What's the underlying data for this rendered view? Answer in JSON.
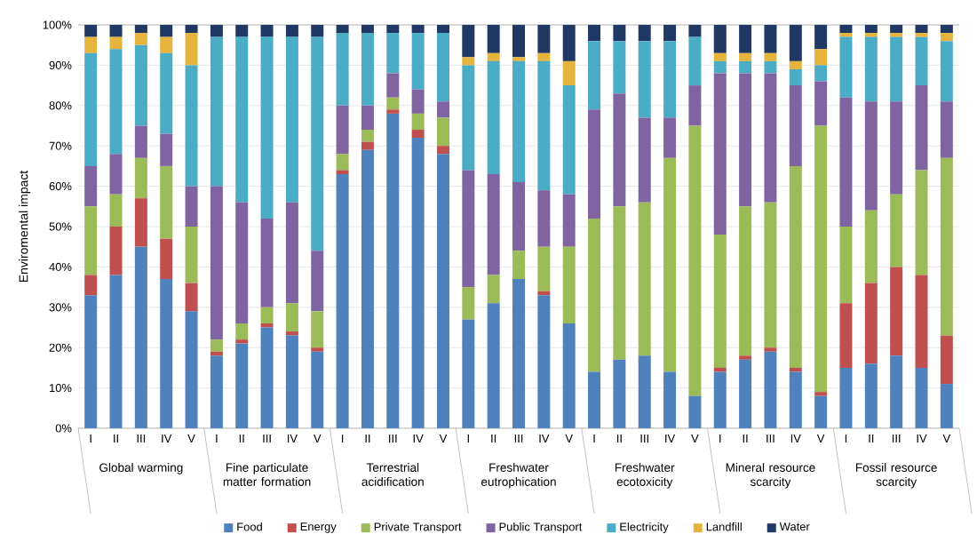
{
  "chart_data": {
    "type": "bar",
    "stacked": true,
    "ylabel": "Enviromental impact",
    "categories": [
      "I",
      "II",
      "III",
      "IV",
      "V",
      "I",
      "II",
      "III",
      "IV",
      "V",
      "I",
      "II",
      "III",
      "IV",
      "V",
      "I",
      "II",
      "III",
      "IV",
      "V",
      "I",
      "II",
      "III",
      "IV",
      "V",
      "I",
      "II",
      "III",
      "IV",
      "V",
      "I",
      "II",
      "III",
      "IV",
      "V"
    ],
    "annotations": [
      "Global warming",
      "Fine particulate matter formation",
      "Terrestrial acidification",
      "Freshwater eutrophication",
      "Freshwater ecotoxicity",
      "Mineral resource scarcity",
      "Fossil resource scarcity"
    ],
    "series": [
      {
        "name": "Food",
        "color": "#4f81bd",
        "values": [
          33,
          38,
          45,
          37,
          29,
          18,
          21,
          25,
          23,
          19,
          63,
          69,
          78,
          72,
          68,
          27,
          31,
          37,
          33,
          26,
          14,
          17,
          18,
          14,
          8,
          14,
          17,
          19,
          14,
          8,
          15,
          16,
          18,
          15,
          11
        ]
      },
      {
        "name": "Energy",
        "color": "#c0504d",
        "values": [
          5,
          12,
          12,
          10,
          7,
          1,
          1,
          1,
          1,
          1,
          1,
          2,
          1,
          2,
          2,
          0,
          0,
          0,
          1,
          0,
          0,
          0,
          0,
          0,
          0,
          1,
          1,
          1,
          1,
          1,
          16,
          20,
          22,
          23,
          12
        ]
      },
      {
        "name": "Private Transport",
        "color": "#9bbb59",
        "values": [
          17,
          8,
          10,
          18,
          14,
          3,
          4,
          4,
          7,
          9,
          4,
          3,
          3,
          4,
          7,
          8,
          7,
          7,
          11,
          19,
          38,
          38,
          38,
          53,
          67,
          33,
          37,
          36,
          50,
          66,
          19,
          18,
          18,
          26,
          44
        ]
      },
      {
        "name": "Public Transport",
        "color": "#8064a2",
        "values": [
          10,
          10,
          8,
          8,
          10,
          38,
          30,
          22,
          25,
          15,
          12,
          6,
          6,
          6,
          4,
          29,
          25,
          17,
          14,
          13,
          27,
          28,
          21,
          10,
          10,
          40,
          33,
          32,
          20,
          11,
          32,
          27,
          23,
          21,
          14
        ]
      },
      {
        "name": "Electricity",
        "color": "#4bacc6",
        "values": [
          28,
          26,
          20,
          20,
          30,
          37,
          41,
          45,
          41,
          53,
          18,
          18,
          10,
          14,
          17,
          26,
          28,
          30,
          32,
          27,
          17,
          13,
          19,
          19,
          12,
          3,
          3,
          3,
          4,
          4,
          15,
          16,
          16,
          12,
          15
        ]
      },
      {
        "name": "Landfill",
        "color": "#e6b43c",
        "values": [
          4,
          3,
          3,
          4,
          8,
          0,
          0,
          0,
          0,
          0,
          0,
          0,
          0,
          0,
          0,
          2,
          2,
          1,
          2,
          6,
          0,
          0,
          0,
          0,
          0,
          2,
          2,
          2,
          2,
          4,
          1,
          1,
          1,
          1,
          2
        ]
      },
      {
        "name": "Water",
        "color": "#1f3864",
        "values": [
          3,
          3,
          2,
          3,
          2,
          3,
          3,
          3,
          3,
          3,
          2,
          2,
          2,
          2,
          2,
          8,
          7,
          8,
          7,
          9,
          4,
          4,
          4,
          4,
          3,
          7,
          7,
          7,
          9,
          6,
          2,
          2,
          2,
          2,
          2
        ]
      }
    ],
    "ylim": [
      0,
      100
    ],
    "yticks": [
      {
        "value": 0,
        "label": "0%"
      },
      {
        "value": 10,
        "label": "10%"
      },
      {
        "value": 20,
        "label": "20%"
      },
      {
        "value": 30,
        "label": "30%"
      },
      {
        "value": 40,
        "label": "40%"
      },
      {
        "value": 50,
        "label": "50%"
      },
      {
        "value": 60,
        "label": "60%"
      },
      {
        "value": 70,
        "label": "70%"
      },
      {
        "value": 80,
        "label": "80%"
      },
      {
        "value": 90,
        "label": "90%"
      },
      {
        "value": 100,
        "label": "100%"
      }
    ],
    "grid": "y",
    "legend": "bottom"
  }
}
